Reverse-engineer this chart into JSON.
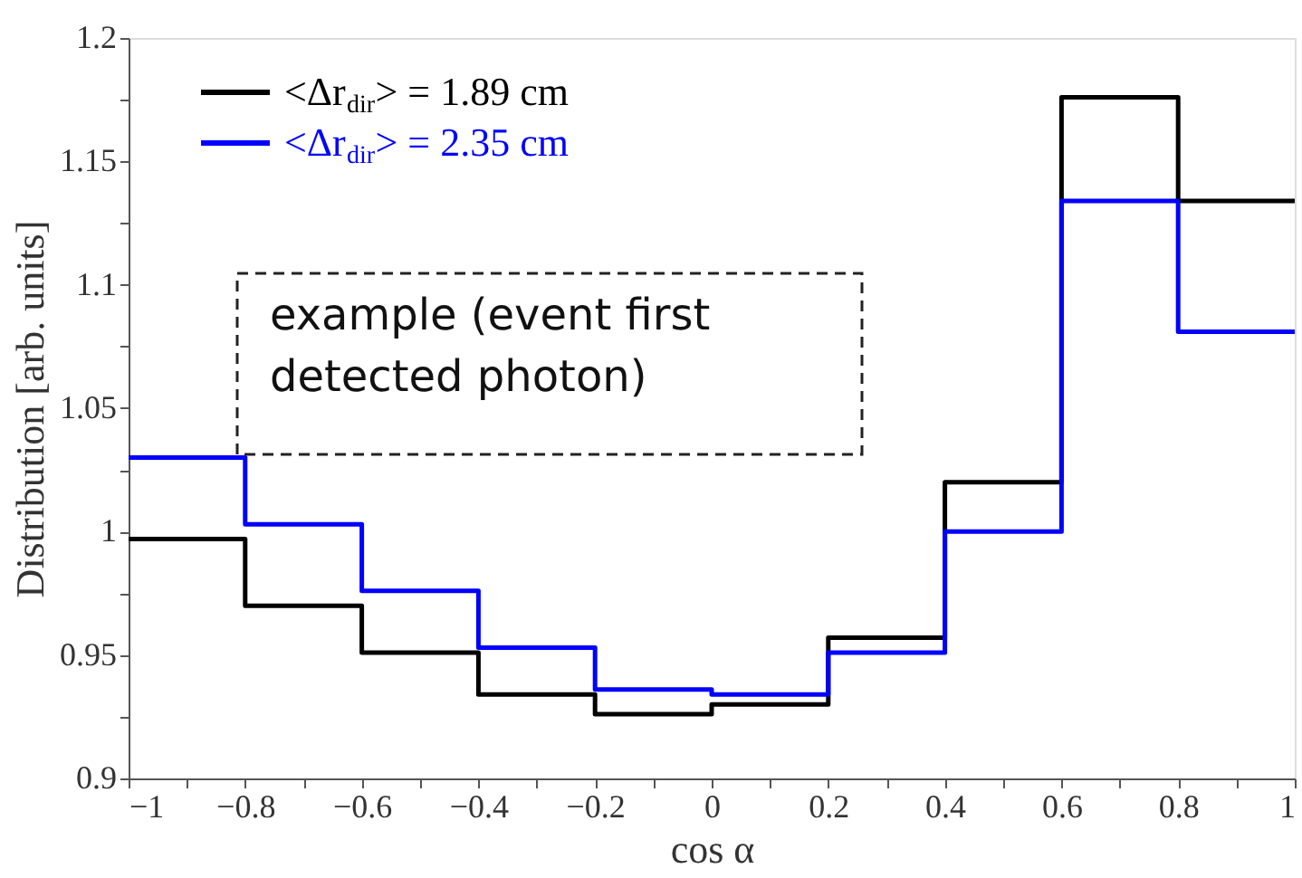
{
  "chart_data": {
    "type": "histogram",
    "xlabel": "cos α",
    "ylabel": "Distribution [arb. units]",
    "bins": [
      -1,
      -0.8,
      -0.6,
      -0.4,
      -0.2,
      0,
      0.2,
      0.4,
      0.6,
      0.8,
      1
    ],
    "series": [
      {
        "name": "<Δr$_{dir}$> = 1.89 cm",
        "color": "#000000",
        "values": [
          0.997,
          0.97,
          0.951,
          0.934,
          0.926,
          0.93,
          0.957,
          1.02,
          1.176,
          1.134
        ]
      },
      {
        "name": "<Δr$_{dir}$> = 2.35 cm",
        "color": "#0000ff",
        "values": [
          1.03,
          1.003,
          0.976,
          0.953,
          0.936,
          0.934,
          0.951,
          1.0,
          1.134,
          1.081
        ]
      }
    ],
    "xlim": [
      -1,
      1
    ],
    "xticks": [
      -1,
      {
        "value": -0.9,
        "label": null
      },
      -0.8,
      {
        "value": -0.7,
        "label": null
      },
      -0.6,
      {
        "value": -0.5,
        "label": null
      },
      -0.4,
      {
        "value": -0.3,
        "label": null
      },
      -0.2,
      {
        "value": -0.1,
        "label": null
      },
      0,
      {
        "value": 0.1,
        "label": null
      },
      0.2,
      {
        "value": 0.3,
        "label": null
      },
      0.4,
      {
        "value": 0.5,
        "label": null
      },
      0.6,
      {
        "value": 0.7,
        "label": null
      },
      0.8,
      {
        "value": 0.9,
        "label": null
      },
      1
    ],
    "ylim": [
      0.9,
      1.2
    ],
    "yticks": [
      0.9,
      {
        "value": 0.925,
        "label": null
      },
      0.95,
      {
        "value": 0.975,
        "label": null
      },
      1,
      {
        "value": 1.025,
        "label": null
      },
      1.05,
      {
        "value": 1.075,
        "label": null
      },
      1.1,
      {
        "value": 1.125,
        "label": null
      },
      1.15,
      {
        "value": 1.175,
        "label": null
      },
      1.2
    ],
    "annotations": [
      "example (event first detected photon)"
    ],
    "legend": "top left",
    "grid": false
  }
}
